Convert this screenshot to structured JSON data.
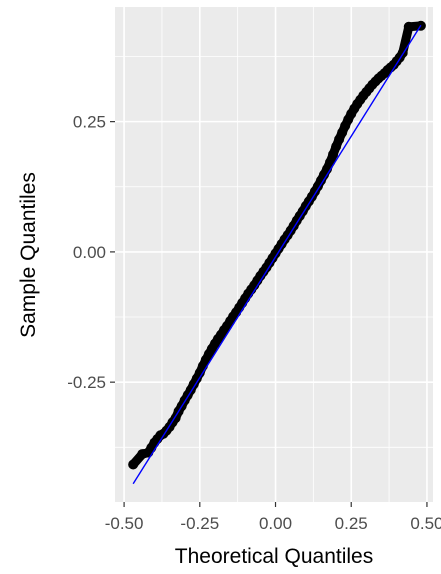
{
  "chart_data": {
    "type": "scatter",
    "title": "",
    "xlabel": "Theoretical Quantiles",
    "ylabel": "Sample Quantiles",
    "xlim": [
      -0.53,
      0.52
    ],
    "ylim": [
      -0.48,
      0.47
    ],
    "x_ticks": [
      -0.5,
      -0.25,
      0.0,
      0.25,
      0.5
    ],
    "x_tick_labels": [
      "-0.50",
      "-0.25",
      "0.00",
      "0.25",
      "0.50"
    ],
    "y_ticks": [
      -0.25,
      0.0,
      0.25
    ],
    "y_tick_labels": [
      "-0.25",
      "0.00",
      "0.25"
    ],
    "grid": true,
    "reference_line": {
      "x": [
        -0.47,
        0.48
      ],
      "y": [
        -0.445,
        0.435
      ],
      "color": "#0000ff"
    },
    "series": [
      {
        "marker_color": "#000000",
        "x": [
          -0.47,
          -0.44,
          -0.42,
          -0.41,
          -0.4,
          -0.39,
          -0.38,
          -0.37,
          -0.36,
          -0.35,
          -0.34,
          -0.33,
          -0.32,
          -0.31,
          -0.3,
          -0.29,
          -0.28,
          -0.27,
          -0.26,
          -0.25,
          -0.24,
          -0.23,
          -0.22,
          -0.21,
          -0.2,
          -0.19,
          -0.18,
          -0.17,
          -0.16,
          -0.15,
          -0.14,
          -0.13,
          -0.12,
          -0.11,
          -0.1,
          -0.09,
          -0.08,
          -0.07,
          -0.06,
          -0.05,
          -0.04,
          -0.03,
          -0.02,
          -0.01,
          0.0,
          0.01,
          0.02,
          0.03,
          0.04,
          0.05,
          0.06,
          0.07,
          0.08,
          0.09,
          0.1,
          0.11,
          0.12,
          0.13,
          0.14,
          0.15,
          0.16,
          0.17,
          0.18,
          0.19,
          0.2,
          0.21,
          0.22,
          0.23,
          0.24,
          0.25,
          0.26,
          0.27,
          0.28,
          0.29,
          0.3,
          0.31,
          0.32,
          0.33,
          0.34,
          0.35,
          0.36,
          0.37,
          0.38,
          0.39,
          0.4,
          0.41,
          0.42,
          0.44,
          0.48
        ],
        "y": [
          -0.408,
          -0.388,
          -0.385,
          -0.376,
          -0.366,
          -0.359,
          -0.352,
          -0.349,
          -0.343,
          -0.336,
          -0.327,
          -0.319,
          -0.306,
          -0.296,
          -0.285,
          -0.275,
          -0.265,
          -0.254,
          -0.243,
          -0.232,
          -0.219,
          -0.207,
          -0.196,
          -0.186,
          -0.176,
          -0.167,
          -0.159,
          -0.15,
          -0.142,
          -0.133,
          -0.124,
          -0.116,
          -0.107,
          -0.098,
          -0.089,
          -0.08,
          -0.072,
          -0.064,
          -0.055,
          -0.046,
          -0.038,
          -0.03,
          -0.021,
          -0.012,
          -0.003,
          0.006,
          0.015,
          0.024,
          0.032,
          0.041,
          0.05,
          0.06,
          0.069,
          0.078,
          0.088,
          0.097,
          0.106,
          0.116,
          0.126,
          0.137,
          0.148,
          0.159,
          0.172,
          0.187,
          0.202,
          0.216,
          0.229,
          0.242,
          0.254,
          0.265,
          0.275,
          0.284,
          0.292,
          0.3,
          0.307,
          0.314,
          0.321,
          0.327,
          0.333,
          0.338,
          0.343,
          0.349,
          0.354,
          0.359,
          0.366,
          0.373,
          0.382,
          0.432,
          0.434
        ]
      }
    ]
  }
}
